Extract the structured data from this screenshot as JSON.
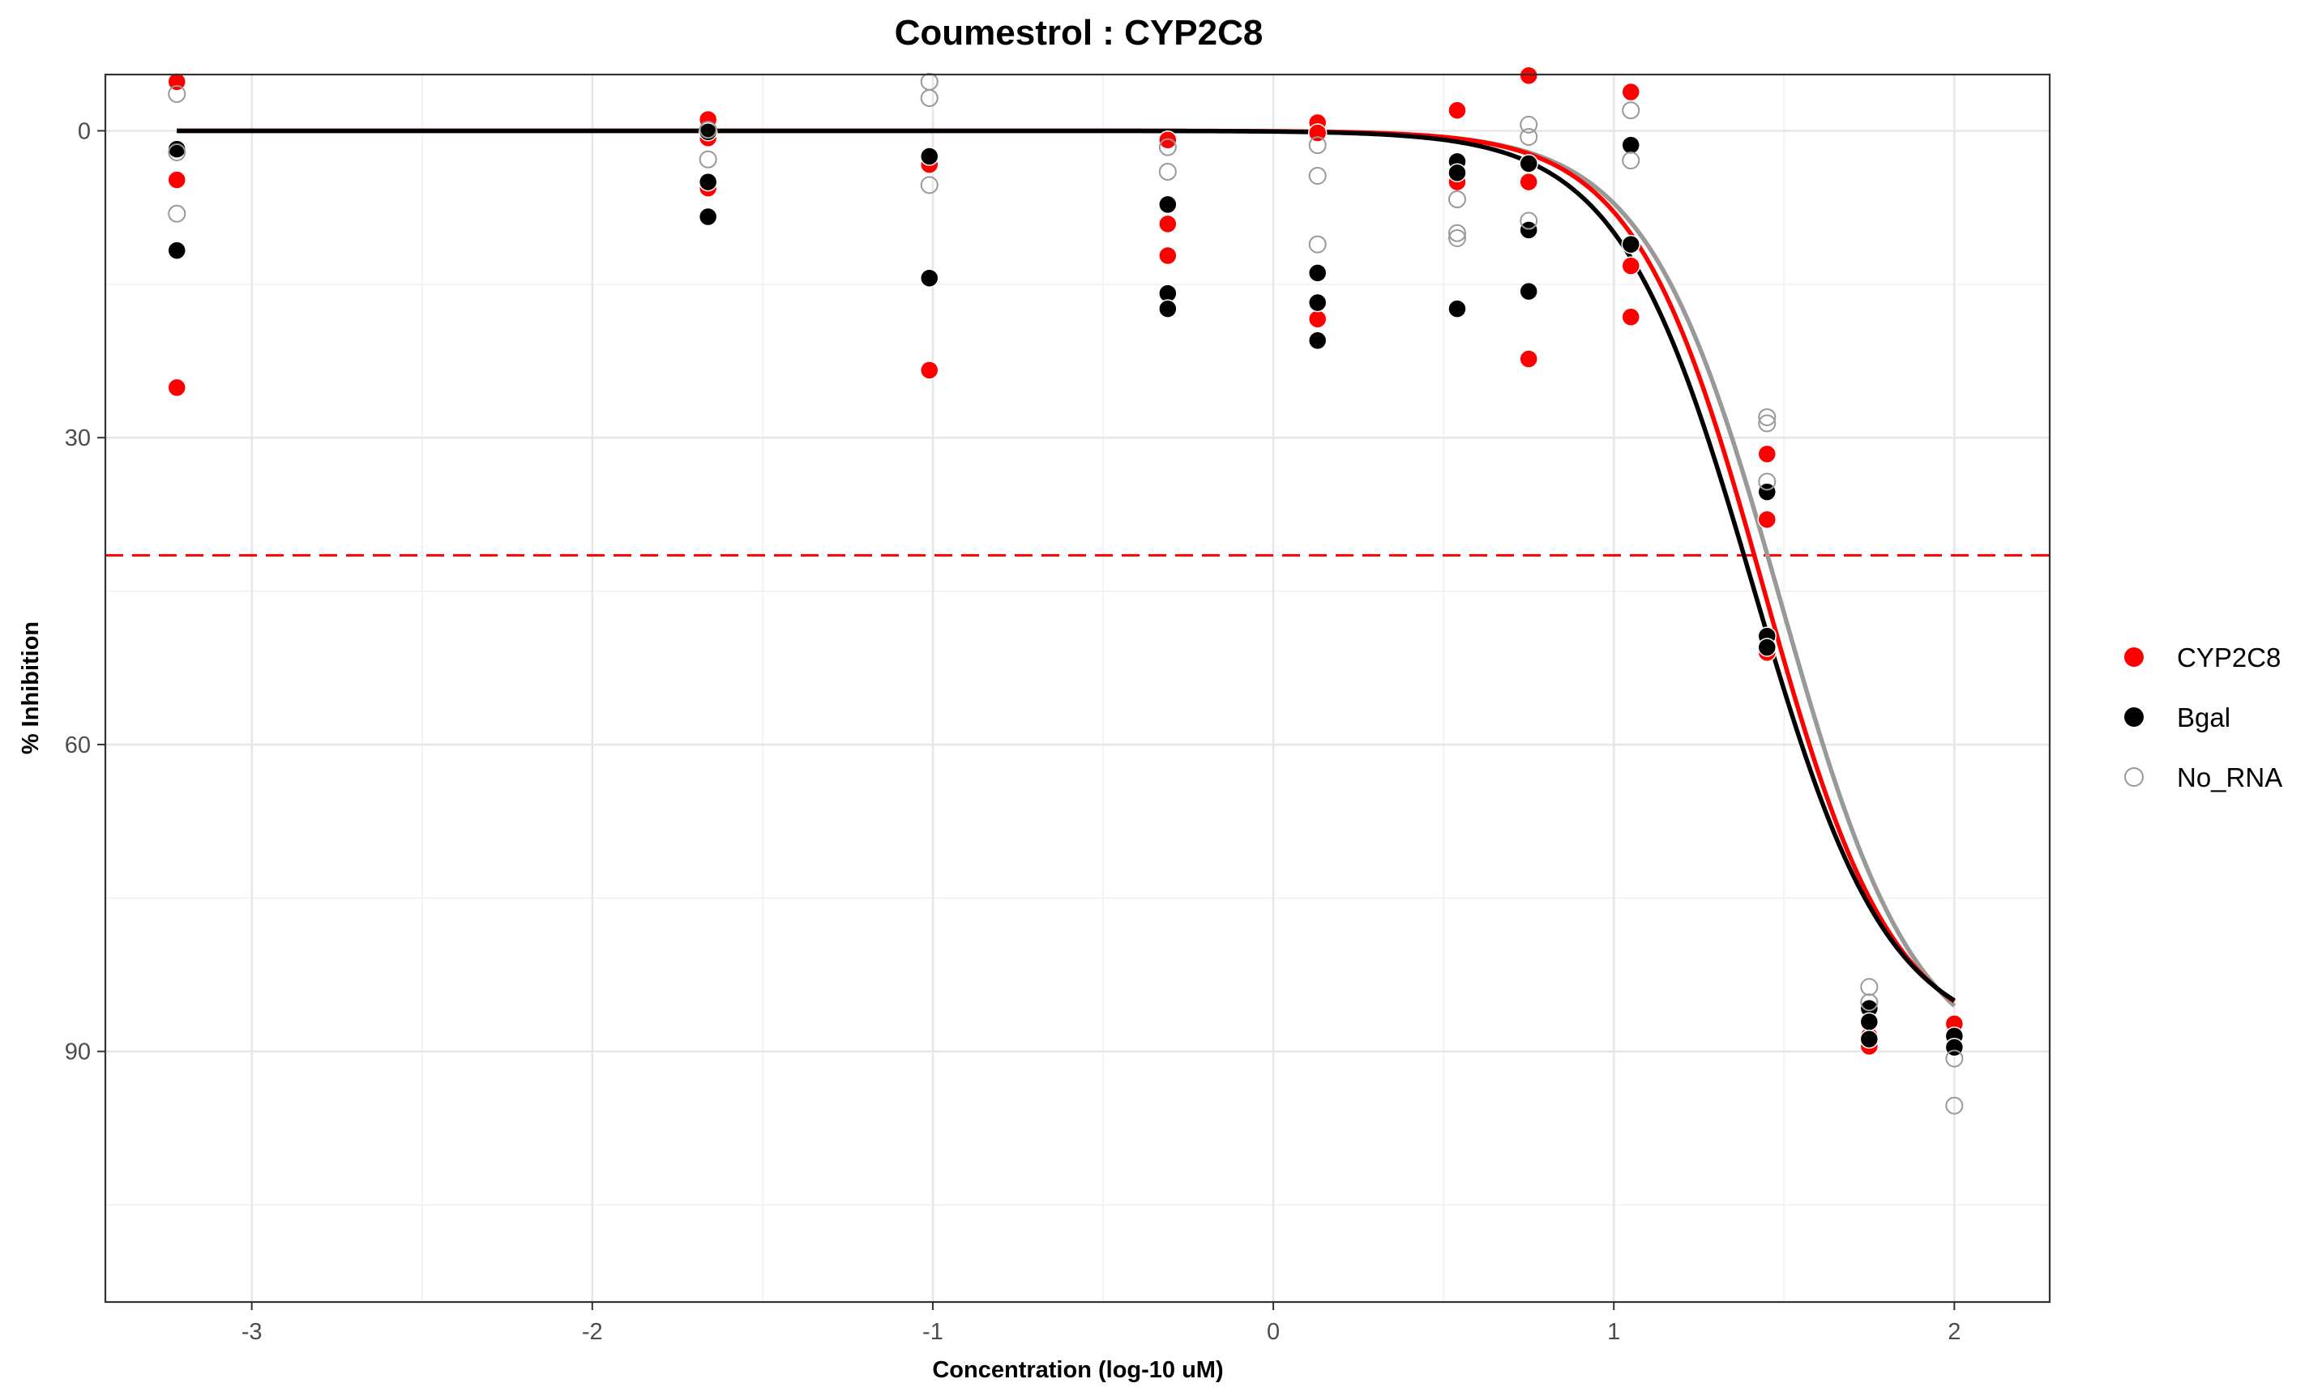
{
  "chart_data": {
    "type": "scatter",
    "title": "Coumestrol : CYP2C8",
    "xlabel": "Concentration (log-10 uM)",
    "ylabel": "% Inhibition",
    "xlim": [
      -3.43,
      2.28
    ],
    "ylim": [
      114.5,
      -5.5
    ],
    "y_reversed": true,
    "x_ticks": [
      -3,
      -2,
      -1,
      0,
      1,
      2
    ],
    "x_tick_labels": [
      "-3",
      "-2",
      "-1",
      "0",
      "1",
      "2"
    ],
    "y_ticks": [
      0,
      30,
      60,
      90
    ],
    "y_tick_labels": [
      "0",
      "30",
      "60",
      "90"
    ],
    "grid": true,
    "legend_position": "right",
    "threshold_line": {
      "y": 41.5,
      "color": "#ff0000",
      "style": "dashed"
    },
    "series": [
      {
        "name": "CYP2C8",
        "color": "#ff0000",
        "marker": "filled-circle",
        "points": [
          [
            -3.22,
            -4.8
          ],
          [
            -3.22,
            4.8
          ],
          [
            -3.22,
            25.1
          ],
          [
            -1.66,
            -1.1
          ],
          [
            -1.66,
            0.7
          ],
          [
            -1.66,
            5.6
          ],
          [
            -1.01,
            3.3
          ],
          [
            -1.01,
            23.4
          ],
          [
            -0.31,
            0.9
          ],
          [
            -0.31,
            9.1
          ],
          [
            -0.31,
            12.2
          ],
          [
            0.13,
            -0.8
          ],
          [
            0.13,
            18.4
          ],
          [
            0.13,
            0.2
          ],
          [
            0.54,
            -2.0
          ],
          [
            0.54,
            5.0
          ],
          [
            0.75,
            -5.4
          ],
          [
            0.75,
            5.0
          ],
          [
            0.75,
            22.3
          ],
          [
            1.05,
            -3.8
          ],
          [
            1.05,
            13.2
          ],
          [
            1.05,
            18.2
          ],
          [
            1.45,
            31.6
          ],
          [
            1.45,
            38.0
          ],
          [
            1.45,
            51.0
          ],
          [
            1.75,
            88.5
          ],
          [
            1.75,
            89.5
          ],
          [
            2.0,
            87.3
          ],
          [
            2.0,
            88.6
          ]
        ],
        "fit": {
          "bottom": 0,
          "top": 89.5,
          "logIC50": 1.44,
          "hill": 2.3
        }
      },
      {
        "name": "Bgal",
        "color": "#000000",
        "marker": "filled-circle",
        "points": [
          [
            -3.22,
            1.8
          ],
          [
            -3.22,
            11.7
          ],
          [
            -1.66,
            0.1
          ],
          [
            -1.66,
            5.0
          ],
          [
            -1.66,
            8.4
          ],
          [
            -1.01,
            2.5
          ],
          [
            -1.01,
            14.4
          ],
          [
            -0.31,
            7.2
          ],
          [
            -0.31,
            15.9
          ],
          [
            -0.31,
            17.4
          ],
          [
            0.13,
            13.9
          ],
          [
            0.13,
            16.8
          ],
          [
            0.13,
            20.5
          ],
          [
            0.54,
            3.0
          ],
          [
            0.54,
            4.1
          ],
          [
            0.54,
            17.4
          ],
          [
            0.75,
            3.2
          ],
          [
            0.75,
            9.7
          ],
          [
            0.75,
            15.7
          ],
          [
            1.05,
            1.4
          ],
          [
            1.05,
            11.1
          ],
          [
            1.45,
            35.3
          ],
          [
            1.45,
            49.4
          ],
          [
            1.45,
            50.5
          ],
          [
            1.75,
            85.8
          ],
          [
            1.75,
            87.1
          ],
          [
            1.75,
            88.8
          ],
          [
            2.0,
            88.5
          ],
          [
            2.0,
            89.6
          ]
        ],
        "fit": {
          "bottom": 0,
          "top": 89.3,
          "logIC50": 1.41,
          "hill": 2.2
        }
      },
      {
        "name": "No_RNA",
        "color": "#999999",
        "marker": "open-circle",
        "points": [
          [
            -3.22,
            -3.6
          ],
          [
            -3.22,
            2.1
          ],
          [
            -3.22,
            8.1
          ],
          [
            -1.66,
            -0.1
          ],
          [
            -1.66,
            2.8
          ],
          [
            -1.01,
            -4.8
          ],
          [
            -1.01,
            -3.2
          ],
          [
            -1.01,
            5.3
          ],
          [
            -0.31,
            1.6
          ],
          [
            -0.31,
            4.0
          ],
          [
            0.13,
            1.4
          ],
          [
            0.13,
            4.4
          ],
          [
            0.13,
            11.1
          ],
          [
            0.54,
            6.7
          ],
          [
            0.54,
            10.0
          ],
          [
            0.54,
            10.5
          ],
          [
            0.75,
            -0.6
          ],
          [
            0.75,
            0.6
          ],
          [
            0.75,
            8.8
          ],
          [
            1.05,
            -2.0
          ],
          [
            1.05,
            2.9
          ],
          [
            1.45,
            28.0
          ],
          [
            1.45,
            28.6
          ],
          [
            1.45,
            34.3
          ],
          [
            1.75,
            83.7
          ],
          [
            1.75,
            85.2
          ],
          [
            2.0,
            90.7
          ],
          [
            2.0,
            95.3
          ]
        ],
        "fit": {
          "bottom": 0,
          "top": 92.0,
          "logIC50": 1.49,
          "hill": 2.2
        }
      }
    ]
  }
}
